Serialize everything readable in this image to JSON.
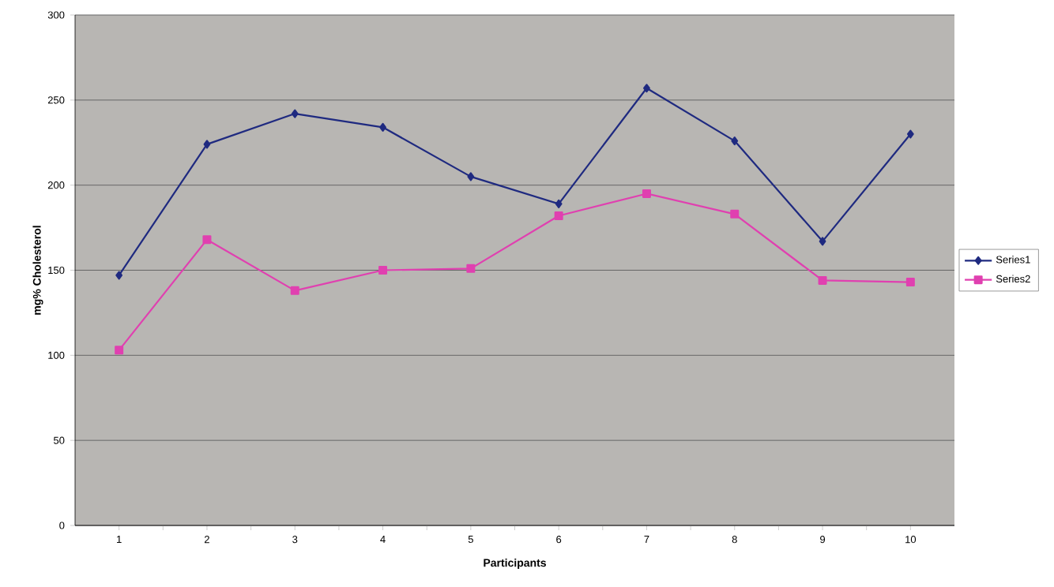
{
  "chart_data": {
    "type": "line",
    "xlabel": "Participants",
    "ylabel": "mg% Cholesterol",
    "categories": [
      "1",
      "2",
      "3",
      "4",
      "5",
      "6",
      "7",
      "8",
      "9",
      "10"
    ],
    "series": [
      {
        "name": "Series1",
        "color": "#1f2a80",
        "marker": "diamond",
        "values": [
          147,
          224,
          242,
          234,
          205,
          189,
          257,
          226,
          167,
          230
        ]
      },
      {
        "name": "Series2",
        "color": "#e040b0",
        "marker": "square",
        "values": [
          103,
          168,
          138,
          150,
          151,
          182,
          195,
          183,
          144,
          143
        ]
      }
    ],
    "ylim": [
      0,
      300
    ],
    "yticks": [
      0,
      50,
      100,
      150,
      200,
      250,
      300
    ],
    "grid": "y",
    "legend": "right",
    "line_style": "solid"
  }
}
